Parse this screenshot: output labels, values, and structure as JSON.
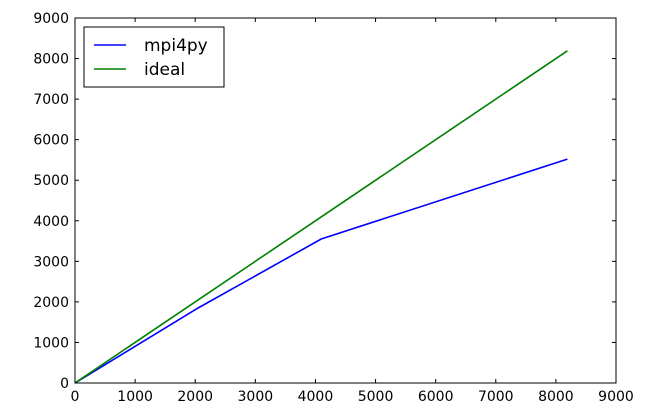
{
  "chart_data": {
    "type": "line",
    "title": "",
    "xlabel": "",
    "ylabel": "",
    "xlim": [
      0,
      9000
    ],
    "ylim": [
      0,
      9000
    ],
    "xticks": [
      0,
      1000,
      2000,
      3000,
      4000,
      5000,
      6000,
      7000,
      8000,
      9000
    ],
    "yticks": [
      0,
      1000,
      2000,
      3000,
      4000,
      5000,
      6000,
      7000,
      8000,
      9000
    ],
    "grid": false,
    "legend_position": "top-left",
    "series": [
      {
        "name": "mpi4py",
        "color": "#0000ff",
        "x": [
          0,
          2048,
          4096,
          8192
        ],
        "y": [
          0,
          1850,
          3550,
          5520
        ]
      },
      {
        "name": "ideal",
        "color": "#008000",
        "x": [
          0,
          2048,
          4096,
          8192
        ],
        "y": [
          0,
          2048,
          4096,
          8192
        ]
      }
    ]
  }
}
